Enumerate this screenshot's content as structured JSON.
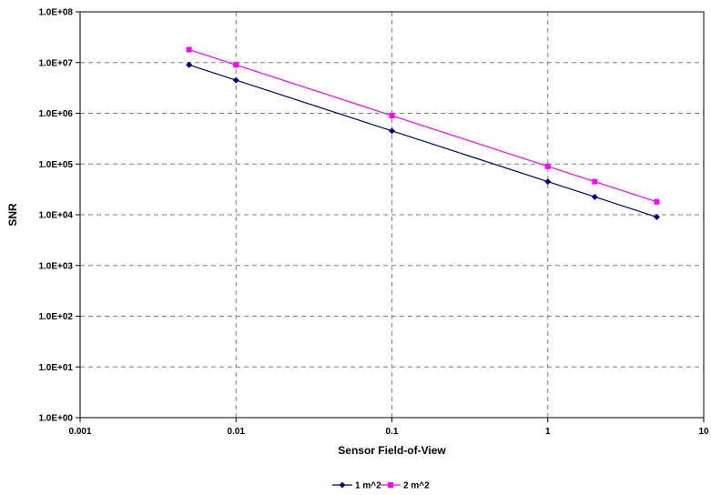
{
  "chart_data": {
    "type": "line",
    "title": "",
    "xlabel": "Sensor Field-of-View",
    "ylabel": "SNR",
    "x_scale": "log",
    "y_scale": "log",
    "xlim": [
      0.001,
      10
    ],
    "ylim": [
      1,
      100000000
    ],
    "x_ticks": [
      "0.001",
      "0.01",
      "0.1",
      "1",
      "10"
    ],
    "y_ticks": [
      "1.0E+00",
      "1.0E+01",
      "1.0E+02",
      "1.0E+03",
      "1.0E+04",
      "1.0E+05",
      "1.0E+06",
      "1.0E+07",
      "1.0E+08"
    ],
    "grid": true,
    "legend_position": "bottom",
    "series": [
      {
        "name": "1 m^2",
        "color": "#000080",
        "marker": "diamond",
        "x": [
          0.005,
          0.01,
          0.1,
          1,
          2,
          5
        ],
        "y": [
          9000000,
          4500000,
          450000,
          45000,
          22500,
          9000
        ]
      },
      {
        "name": "2 m^2",
        "color": "#ff00ff",
        "marker": "square",
        "x": [
          0.005,
          0.01,
          0.1,
          1,
          2,
          5
        ],
        "y": [
          18000000,
          9000000,
          900000,
          90000,
          45000,
          18000
        ]
      }
    ]
  }
}
